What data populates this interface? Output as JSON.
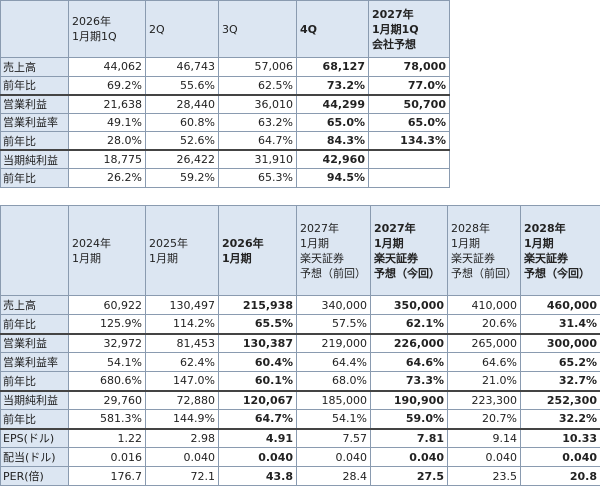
{
  "table1": {
    "columns": [
      "2026年\n1月期1Q",
      "2Q",
      "3Q",
      "4Q",
      "2027年\n1月期1Q\n会社予想"
    ],
    "rows": [
      [
        "売上高",
        "44,062",
        "46,743",
        "57,006",
        "68,127",
        "78,000"
      ],
      [
        "前年比",
        "69.2%",
        "55.6%",
        "62.5%",
        "73.2%",
        "77.0%"
      ],
      [
        "営業利益",
        "21,638",
        "28,440",
        "36,010",
        "44,299",
        "50,700"
      ],
      [
        "営業利益率",
        "49.1%",
        "60.8%",
        "63.2%",
        "65.0%",
        "65.0%"
      ],
      [
        "前年比",
        "28.0%",
        "52.6%",
        "64.7%",
        "84.3%",
        "134.3%"
      ],
      [
        "当期純利益",
        "18,775",
        "26,422",
        "31,910",
        "42,960",
        null
      ],
      [
        "前年比",
        "26.2%",
        "59.2%",
        "65.3%",
        "94.5%",
        null
      ]
    ]
  },
  "table2": {
    "columns": [
      "2024年\n1月期",
      "2025年\n1月期",
      "2026年\n1月期",
      "2027年\n1月期\n楽天証券\n予想（前回）",
      "2027年\n1月期\n楽天証券\n予想（今回）",
      "2028年\n1月期\n楽天証券\n予想（前回）",
      "2028年\n1月期\n楽天証券\n予想（今回）"
    ],
    "rows": [
      [
        "売上高",
        "60,922",
        "130,497",
        "215,938",
        "340,000",
        "350,000",
        "410,000",
        "460,000"
      ],
      [
        "前年比",
        "125.9%",
        "114.2%",
        "65.5%",
        "57.5%",
        "62.1%",
        "20.6%",
        "31.4%"
      ],
      [
        "営業利益",
        "32,972",
        "81,453",
        "130,387",
        "219,000",
        "226,000",
        "265,000",
        "300,000"
      ],
      [
        "営業利益率",
        "54.1%",
        "62.4%",
        "60.4%",
        "64.4%",
        "64.6%",
        "64.6%",
        "65.2%"
      ],
      [
        "前年比",
        "680.6%",
        "147.0%",
        "60.1%",
        "68.0%",
        "73.3%",
        "21.0%",
        "32.7%"
      ],
      [
        "当期純利益",
        "29,760",
        "72,880",
        "120,067",
        "185,000",
        "190,900",
        "223,300",
        "252,300"
      ],
      [
        "前年比",
        "581.3%",
        "144.9%",
        "64.7%",
        "54.1%",
        "59.0%",
        "20.7%",
        "32.2%"
      ],
      [
        "EPS(ドル)",
        "1.22",
        "2.98",
        "4.91",
        "7.57",
        "7.81",
        "9.14",
        "10.33"
      ],
      [
        "配当(ドル)",
        "0.016",
        "0.040",
        "0.040",
        "0.040",
        "0.040",
        "0.040",
        "0.040"
      ],
      [
        "PER(倍)",
        "176.7",
        "72.1",
        "43.8",
        "28.4",
        "27.5",
        "23.5",
        "20.8"
      ]
    ]
  }
}
